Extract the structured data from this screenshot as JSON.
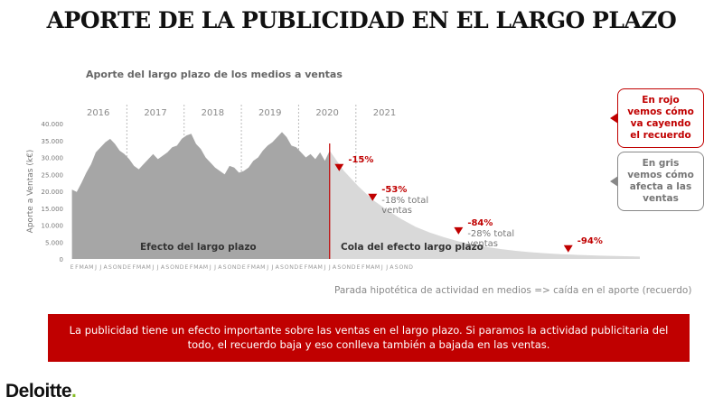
{
  "title": "APORTE DE LA PUBLICIDAD EN EL LARGO PLAZO",
  "subtitle": "Aporte del largo plazo de los medios a ventas",
  "callouts": {
    "red": "En rojo vemos cómo va cayendo el recuerdo",
    "gray": "En gris vemos cómo afecta a las ventas"
  },
  "caption": "Parada hipotética de actividad en medios => caída en el aporte (recuerdo)",
  "banner": "La publicidad tiene un efecto importante sobre las ventas en el largo plazo. Si paramos la actividad publicitaria del todo, el recuerdo baja y eso conlleva también a bajada en las ventas.",
  "logo": {
    "text": "Deloitte",
    "dot": "."
  },
  "colors": {
    "accent": "#c00000",
    "area_dark": "#a6a6a6",
    "area_light": "#d9d9d9",
    "logo_dot": "#86bc25"
  },
  "chart_data": {
    "type": "area",
    "ylabel": "Aporte a Ventas (k€)",
    "ylim": [
      0,
      40000
    ],
    "y_ticks": [
      "0",
      "5.000",
      "10.000",
      "15.000",
      "20.000",
      "25.000",
      "30.000",
      "35.000",
      "40.000"
    ],
    "years": [
      "2016",
      "2017",
      "2018",
      "2019",
      "2020",
      "2021"
    ],
    "month_labels": [
      "E",
      "F",
      "M",
      "A",
      "M",
      "J",
      "J",
      "A",
      "S",
      "O",
      "N",
      "D"
    ],
    "grid": "vertical dashed year separators",
    "series": [
      {
        "name": "Efecto del largo plazo",
        "color": "#a6a6a6",
        "x_month_index": [
          0,
          1,
          2,
          3,
          4,
          5,
          6,
          7,
          8,
          9,
          10,
          11,
          12,
          13,
          14,
          15,
          16,
          17,
          18,
          19,
          20,
          21,
          22,
          23,
          24,
          25,
          26,
          27,
          28,
          29,
          30,
          31,
          32,
          33,
          34,
          35,
          36,
          37,
          38,
          39,
          40,
          41,
          42,
          43,
          44,
          45,
          46,
          47,
          48,
          49,
          50,
          51,
          52,
          53,
          54
        ],
        "values": [
          20500,
          19800,
          22500,
          25500,
          28000,
          31500,
          33000,
          34500,
          35500,
          34000,
          32000,
          31000,
          29500,
          27500,
          26500,
          28000,
          29500,
          31000,
          29500,
          30500,
          31500,
          33000,
          33500,
          35500,
          36500,
          37000,
          34000,
          32500,
          30000,
          28500,
          27000,
          26000,
          25000,
          27500,
          27000,
          25500,
          26000,
          27000,
          29000,
          30000,
          32000,
          33500,
          34500,
          36000,
          37500,
          36000,
          33500,
          33000,
          31500,
          30000,
          31000,
          29500,
          31500,
          29000,
          32000
        ]
      },
      {
        "name": "Cola del efecto largo plazo",
        "color": "#d9d9d9",
        "x_month_index": [
          54,
          57,
          60,
          63,
          66,
          69,
          72,
          75,
          78,
          81,
          84,
          87,
          90,
          93,
          96,
          99,
          102,
          105,
          108,
          111,
          114,
          119
        ],
        "values": [
          32000,
          26000,
          21500,
          17500,
          14500,
          11800,
          9500,
          7800,
          6400,
          5200,
          4300,
          3500,
          2900,
          2400,
          2000,
          1700,
          1450,
          1250,
          1100,
          950,
          850,
          700
        ]
      }
    ],
    "stop_marker_month_index": 54,
    "area_labels": [
      "Efecto del largo plazo",
      "Cola del efecto largo plazo"
    ],
    "annotations": [
      {
        "month_index": 56,
        "value": 27000,
        "pct": "-15%",
        "note": ""
      },
      {
        "month_index": 63,
        "value": 18200,
        "pct": "-53%",
        "note": "-18% total ventas"
      },
      {
        "month_index": 81,
        "value": 8300,
        "pct": "-84%",
        "note": "-28% total ventas"
      },
      {
        "month_index": 104,
        "value": 3000,
        "pct": "-94%",
        "note": ""
      }
    ]
  }
}
